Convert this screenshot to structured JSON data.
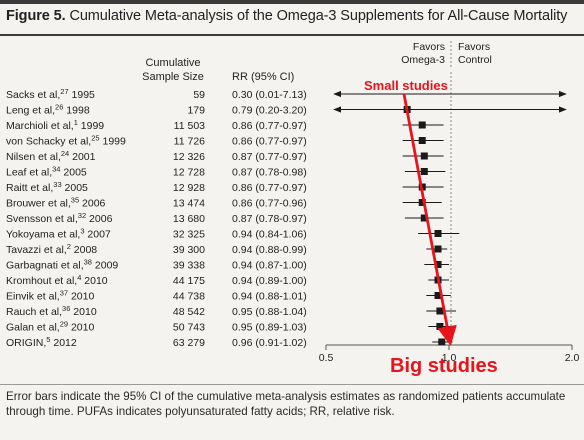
{
  "title": {
    "label": "Figure 5.",
    "text": "Cumulative Meta-analysis of the Omega-3 Supplements for All-Cause Mortality"
  },
  "headers": {
    "sample_size_line1": "Cumulative",
    "sample_size_line2": "Sample Size",
    "rr": "RR (95% CI)",
    "favors_left_line1": "Favors",
    "favors_left_line2": "Omega-3",
    "favors_right_line1": "Favors",
    "favors_right_line2": "Control"
  },
  "annotations": {
    "small_studies": "Small studies",
    "big_studies": "Big studies"
  },
  "footnote": "Error bars indicate the 95% CI of the cumulative meta-analysis estimates as randomized patients accumulate through time. PUFAs indicates polyunsaturated fatty acids; RR, relative risk.",
  "colors": {
    "annotation": "#e8141c",
    "marker": "#1a1a1a",
    "reference_line": "#888888"
  },
  "chart_data": {
    "type": "forest",
    "x_axis": {
      "ticks": [
        "0.5",
        "1.0",
        "2.0"
      ],
      "tick_values": [
        0.5,
        1.0,
        2.0
      ],
      "range": [
        0.5,
        2.0
      ],
      "scale": "log"
    },
    "studies": [
      {
        "name": "Sacks et al,",
        "ref": "27",
        "year": "1995",
        "size": "59",
        "rr_text": "0.30 (0.01-7.13)",
        "rr": 0.3,
        "lo": 0.01,
        "hi": 7.13
      },
      {
        "name": "Leng et al,",
        "ref": "26",
        "year": "1998",
        "size": "179",
        "rr_text": "0.79 (0.20-3.20)",
        "rr": 0.79,
        "lo": 0.2,
        "hi": 3.2
      },
      {
        "name": "Marchioli et al,",
        "ref": "1",
        "year": "1999",
        "size": "11 503",
        "rr_text": "0.86 (0.77-0.97)",
        "rr": 0.86,
        "lo": 0.77,
        "hi": 0.97
      },
      {
        "name": "von Schacky et al,",
        "ref": "25",
        "year": "1999",
        "size": "11 726",
        "rr_text": "0.86 (0.77-0.97)",
        "rr": 0.86,
        "lo": 0.77,
        "hi": 0.97
      },
      {
        "name": "Nilsen et al,",
        "ref": "24",
        "year": "2001",
        "size": "12 326",
        "rr_text": "0.87 (0.77-0.97)",
        "rr": 0.87,
        "lo": 0.77,
        "hi": 0.97
      },
      {
        "name": "Leaf et al,",
        "ref": "34",
        "year": "2005",
        "size": "12 728",
        "rr_text": "0.87 (0.78-0.98)",
        "rr": 0.87,
        "lo": 0.78,
        "hi": 0.98
      },
      {
        "name": "Raitt et al,",
        "ref": "33",
        "year": "2005",
        "size": "12 928",
        "rr_text": "0.86 (0.77-0.97)",
        "rr": 0.86,
        "lo": 0.77,
        "hi": 0.97
      },
      {
        "name": "Brouwer et al,",
        "ref": "35",
        "year": "2006",
        "size": "13 474",
        "rr_text": "0.86 (0.77-0.96)",
        "rr": 0.86,
        "lo": 0.77,
        "hi": 0.96
      },
      {
        "name": "Svensson et al,",
        "ref": "32",
        "year": "2006",
        "size": "13 680",
        "rr_text": "0.87 (0.78-0.97)",
        "rr": 0.87,
        "lo": 0.78,
        "hi": 0.97
      },
      {
        "name": "Yokoyama et al,",
        "ref": "3",
        "year": "2007",
        "size": "32 325",
        "rr_text": "0.94 (0.84-1.06)",
        "rr": 0.94,
        "lo": 0.84,
        "hi": 1.06
      },
      {
        "name": "Tavazzi et al,",
        "ref": "2",
        "year": "2008",
        "size": "39 300",
        "rr_text": "0.94 (0.88-0.99)",
        "rr": 0.94,
        "lo": 0.88,
        "hi": 0.99
      },
      {
        "name": "Garbagnati et al,",
        "ref": "38",
        "year": "2009",
        "size": "39 338",
        "rr_text": "0.94 (0.87-1.00)",
        "rr": 0.94,
        "lo": 0.87,
        "hi": 1.0
      },
      {
        "name": "Kromhout et al,",
        "ref": "4",
        "year": "2010",
        "size": "44 175",
        "rr_text": "0.94 (0.89-1.00)",
        "rr": 0.94,
        "lo": 0.89,
        "hi": 1.0
      },
      {
        "name": "Einvik et al,",
        "ref": "37",
        "year": "2010",
        "size": "44 738",
        "rr_text": "0.94 (0.88-1.01)",
        "rr": 0.94,
        "lo": 0.88,
        "hi": 1.01
      },
      {
        "name": "Rauch et al,",
        "ref": "36",
        "year": "2010",
        "size": "48 542",
        "rr_text": "0.95 (0.88-1.04)",
        "rr": 0.95,
        "lo": 0.88,
        "hi": 1.04
      },
      {
        "name": "Galan et al,",
        "ref": "29",
        "year": "2010",
        "size": "50 743",
        "rr_text": "0.95 (0.89-1.03)",
        "rr": 0.95,
        "lo": 0.89,
        "hi": 1.03
      },
      {
        "name": "ORIGIN,",
        "ref": "5",
        "year": "2012",
        "size": "63 279",
        "rr_text": "0.96 (0.91-1.02)",
        "rr": 0.96,
        "lo": 0.91,
        "hi": 1.02
      }
    ]
  }
}
